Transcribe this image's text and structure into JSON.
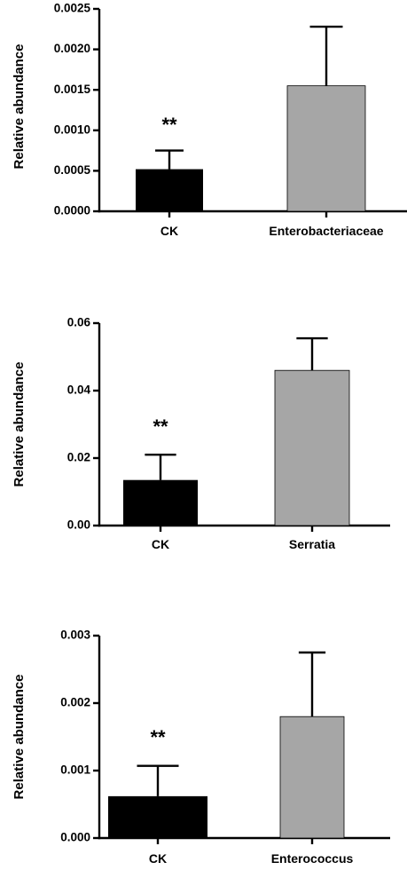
{
  "chart_data": [
    {
      "type": "bar",
      "ylabel": "Relative abundance",
      "categories": [
        "CK",
        "Enterobacteriaceae"
      ],
      "values": [
        0.00052,
        0.00155
      ],
      "error": [
        0.00023,
        0.00073
      ],
      "ylim": [
        0,
        0.0025
      ],
      "yticks": [
        "0.0000",
        "0.0005",
        "0.0010",
        "0.0015",
        "0.0020",
        "0.0025"
      ],
      "annotations": [
        {
          "category": "CK",
          "text": "**"
        }
      ],
      "bar_colors": [
        "#000000",
        "#a6a6a6"
      ]
    },
    {
      "type": "bar",
      "ylabel": "Relative abundance",
      "categories": [
        "CK",
        "Serratia"
      ],
      "values": [
        0.0135,
        0.046
      ],
      "error": [
        0.0075,
        0.0095
      ],
      "ylim": [
        0,
        0.06
      ],
      "yticks": [
        "0.00",
        "0.02",
        "0.04",
        "0.06"
      ],
      "annotations": [
        {
          "category": "CK",
          "text": "**"
        }
      ],
      "bar_colors": [
        "#000000",
        "#a6a6a6"
      ]
    },
    {
      "type": "bar",
      "ylabel": "Relative abundance",
      "categories": [
        "CK",
        "Enterococcus"
      ],
      "values": [
        0.00062,
        0.0018
      ],
      "error": [
        0.00045,
        0.00095
      ],
      "ylim": [
        0,
        0.003
      ],
      "yticks": [
        "0.000",
        "0.001",
        "0.002",
        "0.003"
      ],
      "annotations": [
        {
          "category": "CK",
          "text": "**"
        }
      ],
      "bar_colors": [
        "#000000",
        "#a6a6a6"
      ]
    }
  ]
}
